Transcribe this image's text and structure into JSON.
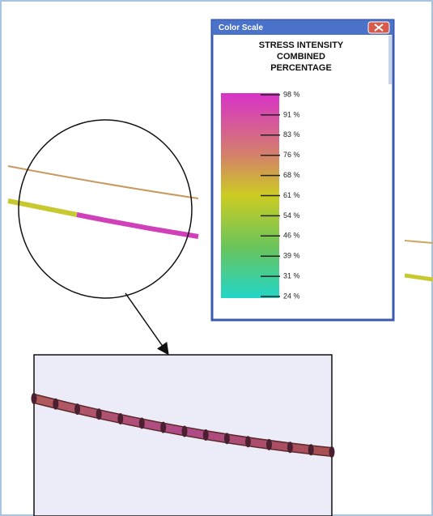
{
  "window": {
    "title": "Color Scale"
  },
  "legend": {
    "heading": [
      "STRESS INTENSITY",
      "COMBINED",
      "PERCENTAGE"
    ],
    "labels": [
      "98 %",
      "91 %",
      "83 %",
      "76 %",
      "68 %",
      "61 %",
      "54 %",
      "46 %",
      "39 %",
      "31 %",
      "24 %"
    ]
  }
}
